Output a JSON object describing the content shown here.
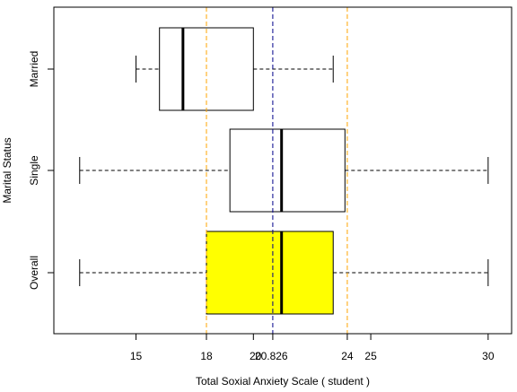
{
  "chart_data": {
    "type": "boxplot",
    "orientation": "horizontal",
    "xlabel": "Total Soxial Anxiety Scale ( student )",
    "ylabel": "Marital Status",
    "xlim": [
      11.5,
      31.0
    ],
    "x_ticks": [
      {
        "value": 15,
        "label": "15"
      },
      {
        "value": 18,
        "label": "18"
      },
      {
        "value": 20,
        "label": "20"
      },
      {
        "value": 20.826,
        "label": "20.826"
      },
      {
        "value": 24,
        "label": "24"
      },
      {
        "value": 25,
        "label": "25"
      },
      {
        "value": 30,
        "label": "30"
      }
    ],
    "groups": [
      {
        "label": "Married",
        "whisker_low": 15.0,
        "q1": 16.0,
        "median": 17.0,
        "q3": 20.0,
        "whisker_high": 23.4,
        "fill": "#ffffff"
      },
      {
        "label": "Single",
        "whisker_low": 12.6,
        "q1": 19.0,
        "median": 21.2,
        "q3": 23.9,
        "whisker_high": 30.0,
        "fill": "#ffffff"
      },
      {
        "label": "Overall",
        "whisker_low": 12.6,
        "q1": 18.0,
        "median": 21.2,
        "q3": 23.4,
        "whisker_high": 30.0,
        "fill": "#ffff00"
      }
    ],
    "reference_lines": [
      {
        "value": 18,
        "color": "#ffa500",
        "style": "dashed"
      },
      {
        "value": 24,
        "color": "#ffa500",
        "style": "dashed"
      },
      {
        "value": 20.826,
        "color": "#00008b",
        "style": "dashed"
      }
    ],
    "grid": false,
    "legend": "none"
  }
}
